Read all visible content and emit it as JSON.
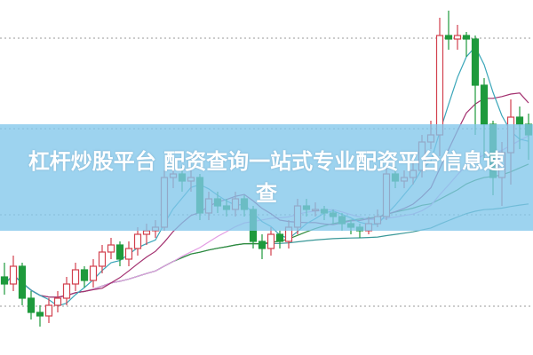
{
  "banner": {
    "title": "杠杆炒股平台 配资查询一站式专业配资平台信息速查"
  },
  "chart_data": {
    "type": "candlestick",
    "ylim": [
      0,
      100
    ],
    "grid": "dotted horizontal",
    "colors": {
      "up": "#d2404e",
      "down": "#1e9a3c",
      "ma5": "#3aa6b9",
      "ma10": "#a3306f",
      "ma20": "#e39be3",
      "ma30": "#2f8a3a",
      "ma60": "#3a9898",
      "banner": "#82c6ea"
    },
    "ma_periods": [
      5,
      10,
      20,
      30,
      60
    ],
    "candles_ohlc": [
      [
        22,
        26,
        17,
        20
      ],
      [
        20,
        28,
        18,
        25
      ],
      [
        25,
        26,
        14,
        16
      ],
      [
        16,
        18,
        10,
        12
      ],
      [
        12,
        14,
        8,
        11
      ],
      [
        11,
        16,
        9,
        14
      ],
      [
        14,
        18,
        12,
        16
      ],
      [
        16,
        22,
        14,
        20
      ],
      [
        20,
        26,
        18,
        24
      ],
      [
        24,
        25,
        19,
        21
      ],
      [
        21,
        27,
        19,
        25
      ],
      [
        25,
        31,
        23,
        29
      ],
      [
        29,
        33,
        27,
        31
      ],
      [
        31,
        32,
        25,
        27
      ],
      [
        27,
        32,
        25,
        30
      ],
      [
        30,
        36,
        28,
        34
      ],
      [
        34,
        37,
        31,
        35
      ],
      [
        35,
        38,
        33,
        36
      ],
      [
        36,
        52,
        35,
        50
      ],
      [
        50,
        55,
        47,
        51
      ],
      [
        51,
        53,
        46,
        49
      ],
      [
        49,
        52,
        46,
        50
      ],
      [
        50,
        51,
        38,
        40
      ],
      [
        40,
        46,
        38,
        44
      ],
      [
        44,
        46,
        40,
        42
      ],
      [
        42,
        44,
        39,
        41
      ],
      [
        41,
        46,
        39,
        44
      ],
      [
        44,
        45,
        39,
        41
      ],
      [
        41,
        42,
        30,
        32
      ],
      [
        32,
        34,
        27,
        30
      ],
      [
        30,
        36,
        28,
        34
      ],
      [
        34,
        35,
        30,
        32
      ],
      [
        32,
        38,
        30,
        36
      ],
      [
        36,
        44,
        34,
        42
      ],
      [
        42,
        44,
        39,
        41
      ],
      [
        41,
        43,
        39,
        41
      ],
      [
        41,
        42,
        38,
        40
      ],
      [
        40,
        41,
        37,
        39
      ],
      [
        39,
        40,
        35,
        37
      ],
      [
        37,
        38,
        34,
        36
      ],
      [
        36,
        37,
        33,
        35
      ],
      [
        35,
        39,
        34,
        37
      ],
      [
        37,
        41,
        36,
        39
      ],
      [
        39,
        53,
        38,
        51
      ],
      [
        51,
        53,
        47,
        49
      ],
      [
        49,
        52,
        47,
        50
      ],
      [
        50,
        55,
        48,
        52
      ],
      [
        52,
        62,
        50,
        60
      ],
      [
        60,
        66,
        58,
        62
      ],
      [
        62,
        95,
        56,
        90
      ],
      [
        90,
        97,
        86,
        89
      ],
      [
        89,
        93,
        86,
        90
      ],
      [
        90,
        91,
        84,
        89
      ],
      [
        89,
        90,
        62,
        76
      ],
      [
        76,
        78,
        55,
        65
      ],
      [
        65,
        66,
        45,
        50
      ],
      [
        50,
        60,
        42,
        57
      ],
      [
        57,
        72,
        48,
        67
      ],
      [
        67,
        70,
        58,
        65
      ],
      [
        65,
        68,
        55,
        62
      ]
    ]
  }
}
